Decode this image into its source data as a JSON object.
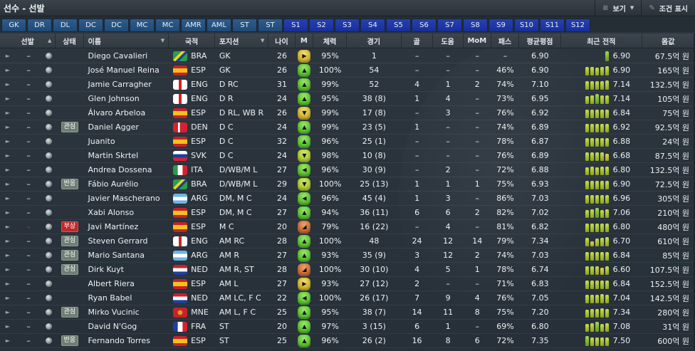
{
  "window": {
    "title": "선수 - 선발",
    "actions": [
      {
        "label": "보기",
        "icon": "list-icon",
        "has_caret": true
      },
      {
        "label": "조건 표시",
        "icon": "pin-icon",
        "has_caret": false
      }
    ]
  },
  "position_tabs": [
    "GK",
    "DR",
    "DL",
    "DC",
    "DC",
    "MC",
    "MC",
    "AMR",
    "AML",
    "ST",
    "ST"
  ],
  "sub_tabs": [
    "S1",
    "S2",
    "S3",
    "S4",
    "S5",
    "S6",
    "S7",
    "S8",
    "S9",
    "S10",
    "S11",
    "S12"
  ],
  "columns": {
    "start": "선발",
    "status": "상태",
    "name": "이름",
    "nationality": "국적",
    "position": "포지션",
    "age": "나이",
    "morale": "M",
    "condition": "체력",
    "apps": "경기",
    "goals": "골",
    "assists": "도움",
    "mom": "MoM",
    "pass": "패스",
    "avg_rating": "평균평점",
    "recent_form": "최근 전적",
    "value": "몸값"
  },
  "colors": {
    "morale_green": "#4fb829",
    "morale_yellow": "#c9a82a",
    "morale_lime": "#9fbf2a",
    "morale_orange": "#c0602a",
    "injury_tag": "#c0282a",
    "tab_position": "#1f4a76",
    "tab_sub": "#19309a"
  },
  "players": [
    {
      "start": "–",
      "status": "",
      "name": "Diego Cavalieri",
      "nat": "BRA",
      "pos": "GK",
      "age": "26",
      "morale": "yellow",
      "morale_icon": "▶",
      "cond": "95%",
      "apps": "1",
      "gls": "–",
      "ast": "–",
      "mom": "–",
      "pas": "–",
      "avr": "6.90",
      "form": [
        0,
        0,
        0,
        0,
        14
      ],
      "form_val": "6.90",
      "value": "67.5억 원"
    },
    {
      "start": "–",
      "status": "",
      "name": "José Manuel Reina",
      "nat": "ESP",
      "pos": "GK",
      "age": "26",
      "morale": "green",
      "morale_icon": "▲",
      "cond": "100%",
      "apps": "54",
      "gls": "–",
      "ast": "–",
      "mom": "–",
      "pas": "46%",
      "avr": "6.90",
      "form": [
        12,
        12,
        11,
        12,
        13
      ],
      "form_val": "6.90",
      "value": "165억 원"
    },
    {
      "start": "–",
      "status": "",
      "name": "Jamie Carragher",
      "nat": "ENG",
      "pos": "D RC",
      "age": "31",
      "morale": "green",
      "morale_icon": "▲",
      "cond": "99%",
      "apps": "52",
      "gls": "4",
      "ast": "1",
      "mom": "2",
      "pas": "74%",
      "avr": "7.10",
      "form": [
        12,
        12,
        12,
        12,
        13
      ],
      "form_val": "7.14",
      "value": "132.5억 원"
    },
    {
      "start": "–",
      "status": "",
      "name": "Glen Johnson",
      "nat": "ENG",
      "pos": "D R",
      "age": "24",
      "morale": "green",
      "morale_icon": "▲",
      "cond": "95%",
      "apps": "38 (8)",
      "gls": "1",
      "ast": "4",
      "mom": "–",
      "pas": "73%",
      "avr": "6.95",
      "form": [
        11,
        12,
        14,
        12,
        12
      ],
      "form_val": "7.14",
      "value": "105억 원"
    },
    {
      "start": "–",
      "status": "",
      "name": "Álvaro Arbeloa",
      "nat": "ESP",
      "pos": "D RL, WB R",
      "age": "26",
      "morale": "yellow",
      "morale_icon": "▼",
      "cond": "99%",
      "apps": "17 (8)",
      "gls": "–",
      "ast": "3",
      "mom": "–",
      "pas": "76%",
      "avr": "6.92",
      "form": [
        12,
        12,
        12,
        12,
        12
      ],
      "form_val": "6.84",
      "value": "75억 원"
    },
    {
      "start": "–",
      "status": "관심",
      "name": "Daniel Agger",
      "nat": "DEN",
      "pos": "D C",
      "age": "24",
      "morale": "green",
      "morale_icon": "▲",
      "cond": "99%",
      "apps": "23 (5)",
      "gls": "1",
      "ast": "–",
      "mom": "–",
      "pas": "74%",
      "avr": "6.89",
      "form": [
        12,
        12,
        12,
        12,
        12
      ],
      "form_val": "6.92",
      "value": "92.5억 원"
    },
    {
      "start": "–",
      "status": "",
      "name": "Juanito",
      "nat": "ESP",
      "pos": "D C",
      "age": "32",
      "morale": "green",
      "morale_icon": "▲",
      "cond": "96%",
      "apps": "25 (1)",
      "gls": "–",
      "ast": "–",
      "mom": "–",
      "pas": "78%",
      "avr": "6.87",
      "form": [
        12,
        12,
        12,
        12,
        12
      ],
      "form_val": "6.88",
      "value": "24억 원"
    },
    {
      "start": "–",
      "status": "",
      "name": "Martin Skrtel",
      "nat": "SVK",
      "pos": "D C",
      "age": "24",
      "morale": "lime",
      "morale_icon": "▼",
      "cond": "98%",
      "apps": "10 (8)",
      "gls": "–",
      "ast": "–",
      "mom": "–",
      "pas": "76%",
      "avr": "6.89",
      "form": [
        12,
        12,
        12,
        12,
        10
      ],
      "form_val": "6.68",
      "value": "87.5억 원"
    },
    {
      "start": "–",
      "status": "",
      "name": "Andrea Dossena",
      "nat": "ITA",
      "pos": "D/WB/M L",
      "age": "27",
      "morale": "green",
      "morale_icon": "◀",
      "cond": "96%",
      "apps": "30 (9)",
      "gls": "–",
      "ast": "2",
      "mom": "–",
      "pas": "72%",
      "avr": "6.88",
      "form": [
        11,
        12,
        11,
        12,
        12
      ],
      "form_val": "6.80",
      "value": "132.5억 원"
    },
    {
      "start": "–",
      "status": "반응",
      "name": "Fábio Aurélio",
      "nat": "BRA",
      "pos": "D/WB/M L",
      "age": "29",
      "morale": "lime",
      "morale_icon": "▼",
      "cond": "100%",
      "apps": "25 (13)",
      "gls": "1",
      "ast": "1",
      "mom": "1",
      "pas": "75%",
      "avr": "6.93",
      "form": [
        12,
        12,
        12,
        12,
        12
      ],
      "form_val": "6.90",
      "value": "72.5억 원"
    },
    {
      "start": "–",
      "status": "",
      "name": "Javier Mascherano",
      "nat": "ARG",
      "pos": "DM, M C",
      "age": "24",
      "morale": "green",
      "morale_icon": "◀",
      "cond": "96%",
      "apps": "45 (4)",
      "gls": "1",
      "ast": "3",
      "mom": "–",
      "pas": "86%",
      "avr": "7.03",
      "form": [
        12,
        12,
        12,
        12,
        12
      ],
      "form_val": "6.96",
      "value": "305억 원"
    },
    {
      "start": "–",
      "status": "",
      "name": "Xabi Alonso",
      "nat": "ESP",
      "pos": "DM, M C",
      "age": "27",
      "morale": "green",
      "morale_icon": "▲",
      "cond": "94%",
      "apps": "36 (11)",
      "gls": "6",
      "ast": "6",
      "mom": "2",
      "pas": "82%",
      "avr": "7.02",
      "form": [
        11,
        12,
        14,
        11,
        12
      ],
      "form_val": "7.06",
      "value": "210억 원"
    },
    {
      "start": "–",
      "start_red": true,
      "status": "부상",
      "name": "Javi Martínez",
      "nat": "ESP",
      "pos": "M C",
      "age": "20",
      "morale": "orange",
      "morale_icon": "◢",
      "cond": "79%",
      "apps": "16 (22)",
      "gls": "–",
      "ast": "4",
      "mom": "–",
      "pas": "81%",
      "avr": "6.82",
      "form": [
        12,
        12,
        12,
        12,
        12
      ],
      "form_val": "6.80",
      "value": "480억 원"
    },
    {
      "start": "–",
      "status": "관심",
      "name": "Steven Gerrard",
      "nat": "ENG",
      "pos": "AM RC",
      "age": "28",
      "morale": "green",
      "morale_icon": "▲",
      "cond": "100%",
      "apps": "48",
      "gls": "24",
      "ast": "12",
      "mom": "14",
      "pas": "79%",
      "avr": "7.34",
      "form": [
        12,
        7,
        11,
        12,
        13
      ],
      "form_val": "6.70",
      "value": "610억 원"
    },
    {
      "start": "–",
      "status": "관심",
      "name": "Mario Santana",
      "nat": "ARG",
      "pos": "AM R",
      "age": "27",
      "morale": "green",
      "morale_icon": "▲",
      "cond": "93%",
      "apps": "35 (9)",
      "gls": "3",
      "ast": "12",
      "mom": "2",
      "pas": "74%",
      "avr": "7.03",
      "form": [
        12,
        12,
        12,
        12,
        12
      ],
      "form_val": "6.84",
      "value": "85억 원"
    },
    {
      "start": "–",
      "status": "관심",
      "name": "Dirk Kuyt",
      "nat": "NED",
      "pos": "AM R, ST",
      "age": "28",
      "morale": "orange",
      "morale_icon": "◢",
      "cond": "100%",
      "apps": "30 (10)",
      "gls": "4",
      "ast": "5",
      "mom": "1",
      "pas": "78%",
      "avr": "6.74",
      "form": [
        12,
        12,
        12,
        10,
        12
      ],
      "form_val": "6.60",
      "value": "107.5억 원"
    },
    {
      "start": "–",
      "status": "",
      "name": "Albert Riera",
      "nat": "ESP",
      "pos": "AM L",
      "age": "27",
      "morale": "yellow",
      "morale_icon": "▶",
      "cond": "93%",
      "apps": "27 (12)",
      "gls": "2",
      "ast": "–",
      "mom": "–",
      "pas": "71%",
      "avr": "6.83",
      "form": [
        12,
        12,
        12,
        12,
        12
      ],
      "form_val": "6.84",
      "value": "152.5억 원"
    },
    {
      "start": "–",
      "status": "",
      "name": "Ryan Babel",
      "nat": "NED",
      "pos": "AM LC, F C",
      "age": "22",
      "morale": "green",
      "morale_icon": "◀",
      "cond": "100%",
      "apps": "26 (17)",
      "gls": "7",
      "ast": "9",
      "mom": "4",
      "pas": "76%",
      "avr": "7.05",
      "form": [
        12,
        12,
        12,
        13,
        12
      ],
      "form_val": "7.04",
      "value": "142.5억 원"
    },
    {
      "start": "–",
      "status": "관심",
      "name": "Mirko Vucinic",
      "nat": "MNE",
      "pos": "AM L, F C",
      "age": "25",
      "morale": "green",
      "morale_icon": "▲",
      "cond": "95%",
      "apps": "38 (7)",
      "gls": "14",
      "ast": "11",
      "mom": "8",
      "pas": "75%",
      "avr": "7.20",
      "form": [
        11,
        12,
        12,
        13,
        12
      ],
      "form_val": "7.34",
      "value": "280억 원"
    },
    {
      "start": "–",
      "status": "",
      "name": "David N'Gog",
      "nat": "FRA",
      "pos": "ST",
      "age": "20",
      "morale": "green",
      "morale_icon": "▲",
      "cond": "97%",
      "apps": "3 (15)",
      "gls": "6",
      "ast": "1",
      "mom": "–",
      "pas": "69%",
      "avr": "6.80",
      "form": [
        11,
        12,
        14,
        11,
        12
      ],
      "form_val": "7.08",
      "value": "31억 원"
    },
    {
      "start": "–",
      "status": "반응",
      "name": "Fernando Torres",
      "nat": "ESP",
      "pos": "ST",
      "age": "25",
      "morale": "green",
      "morale_icon": "▲",
      "cond": "96%",
      "apps": "26 (2)",
      "gls": "16",
      "ast": "8",
      "mom": "6",
      "pas": "72%",
      "avr": "7.35",
      "form": [
        14,
        12,
        12,
        12,
        12
      ],
      "form_val": "7.50",
      "value": "600억 원"
    }
  ],
  "flags": {
    "BRA": "linear-gradient(135deg,#2aa048 0%,#2aa048 35%,#f2d21a 36%,#f2d21a 50%,#1f3f9a 51%,#1f3f9a 65%,#2aa048 66%)",
    "ESP": "linear-gradient(180deg,#c8202a 0%,#c8202a 28%,#f2c21a 29%,#f2c21a 72%,#c8202a 73%)",
    "ENG": "linear-gradient(90deg,#ffffff 0%,#ffffff 40%,#d82020 41%,#d82020 59%,#ffffff 60%)",
    "DEN": "linear-gradient(90deg,#d82030 0%,#d82030 35%,#ffffff 36%,#ffffff 48%,#d82030 49%)",
    "SVK": "linear-gradient(180deg,#ffffff 0%,#ffffff 33%,#1f3f9a 34%,#1f3f9a 66%,#d82030 67%)",
    "ITA": "linear-gradient(90deg,#2a9a48 0%,#2a9a48 33%,#ffffff 34%,#ffffff 66%,#d82030 67%)",
    "ARG": "linear-gradient(180deg,#6cb4e8 0%,#6cb4e8 33%,#ffffff 34%,#ffffff 66%,#6cb4e8 67%)",
    "NED": "linear-gradient(180deg,#c8202a 0%,#c8202a 33%,#ffffff 34%,#ffffff 66%,#1f3f9a 67%)",
    "MNE": "radial-gradient(circle,#d8a020 0%,#d8a020 25%,#c8202a 30%)",
    "FRA": "linear-gradient(90deg,#1f3f9a 0%,#1f3f9a 33%,#ffffff 34%,#ffffff 66%,#d82030 67%)"
  }
}
